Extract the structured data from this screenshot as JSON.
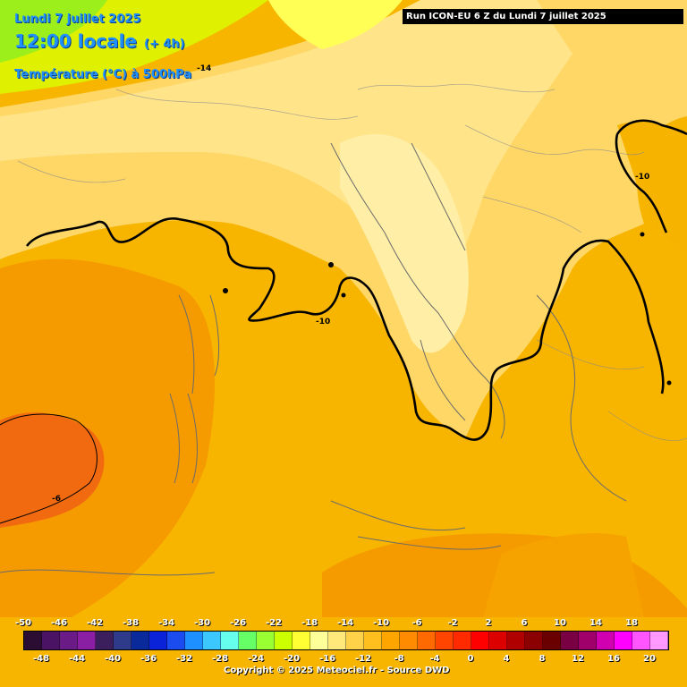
{
  "header": {
    "date_line": "Lundi 7 juillet 2025",
    "hour_line": "12:00 locale",
    "hour_offset": "(+ 4h)",
    "parameter_line": "Température (°C) à 500hPa",
    "run_info": "Run ICON-EU 6 Z du Lundi 7 juillet 2025"
  },
  "contour_labels": {
    "label_a": "-14",
    "label_b": "-10",
    "label_c": "-10",
    "label_d": "-6"
  },
  "legend": {
    "top_labels": [
      "-50",
      "-46",
      "-42",
      "-38",
      "-34",
      "-30",
      "-26",
      "-22",
      "-18",
      "-14",
      "-10",
      "-6",
      "-2",
      "2",
      "6",
      "10",
      "14",
      "18"
    ],
    "bottom_labels": [
      "-48",
      "-44",
      "-40",
      "-36",
      "-32",
      "-28",
      "-24",
      "-20",
      "-16",
      "-12",
      "-8",
      "-4",
      "0",
      "4",
      "8",
      "12",
      "16",
      "20"
    ],
    "colors": [
      "#2b0d33",
      "#4b1363",
      "#6a1b86",
      "#8a1fa3",
      "#3a1f5c",
      "#2e3a8a",
      "#0a2a9c",
      "#0a22d8",
      "#1a4cf0",
      "#1e90ff",
      "#3cc8ff",
      "#66ffee",
      "#66ff66",
      "#99ff33",
      "#ccff00",
      "#ffff33",
      "#ffff99",
      "#ffe97a",
      "#ffd24a",
      "#ffbf1f",
      "#ffa500",
      "#ff8c00",
      "#ff6a00",
      "#ff4500",
      "#ff2a00",
      "#ff0000",
      "#dd0000",
      "#b00000",
      "#8b0000",
      "#6a0000",
      "#7a0044",
      "#a0006a",
      "#d000b0",
      "#ff00ff",
      "#ff55ff",
      "#ff99ff"
    ]
  },
  "copyright": "Copyright © 2025 Meteociel.fr - Source DWD"
}
